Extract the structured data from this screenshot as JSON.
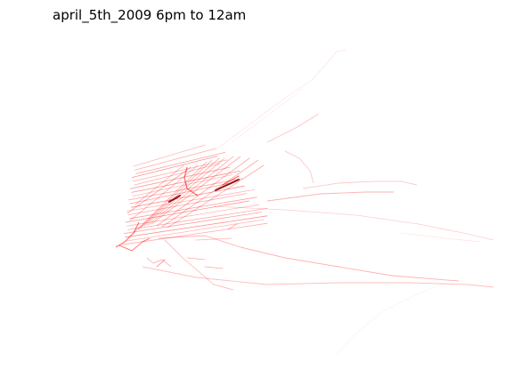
{
  "title": "april_5th_2009 6pm to 12am",
  "map": {
    "line_color": "#ff0000",
    "dark_line_color": "#8b0000",
    "grid_on": false,
    "axes_visible": false
  }
}
